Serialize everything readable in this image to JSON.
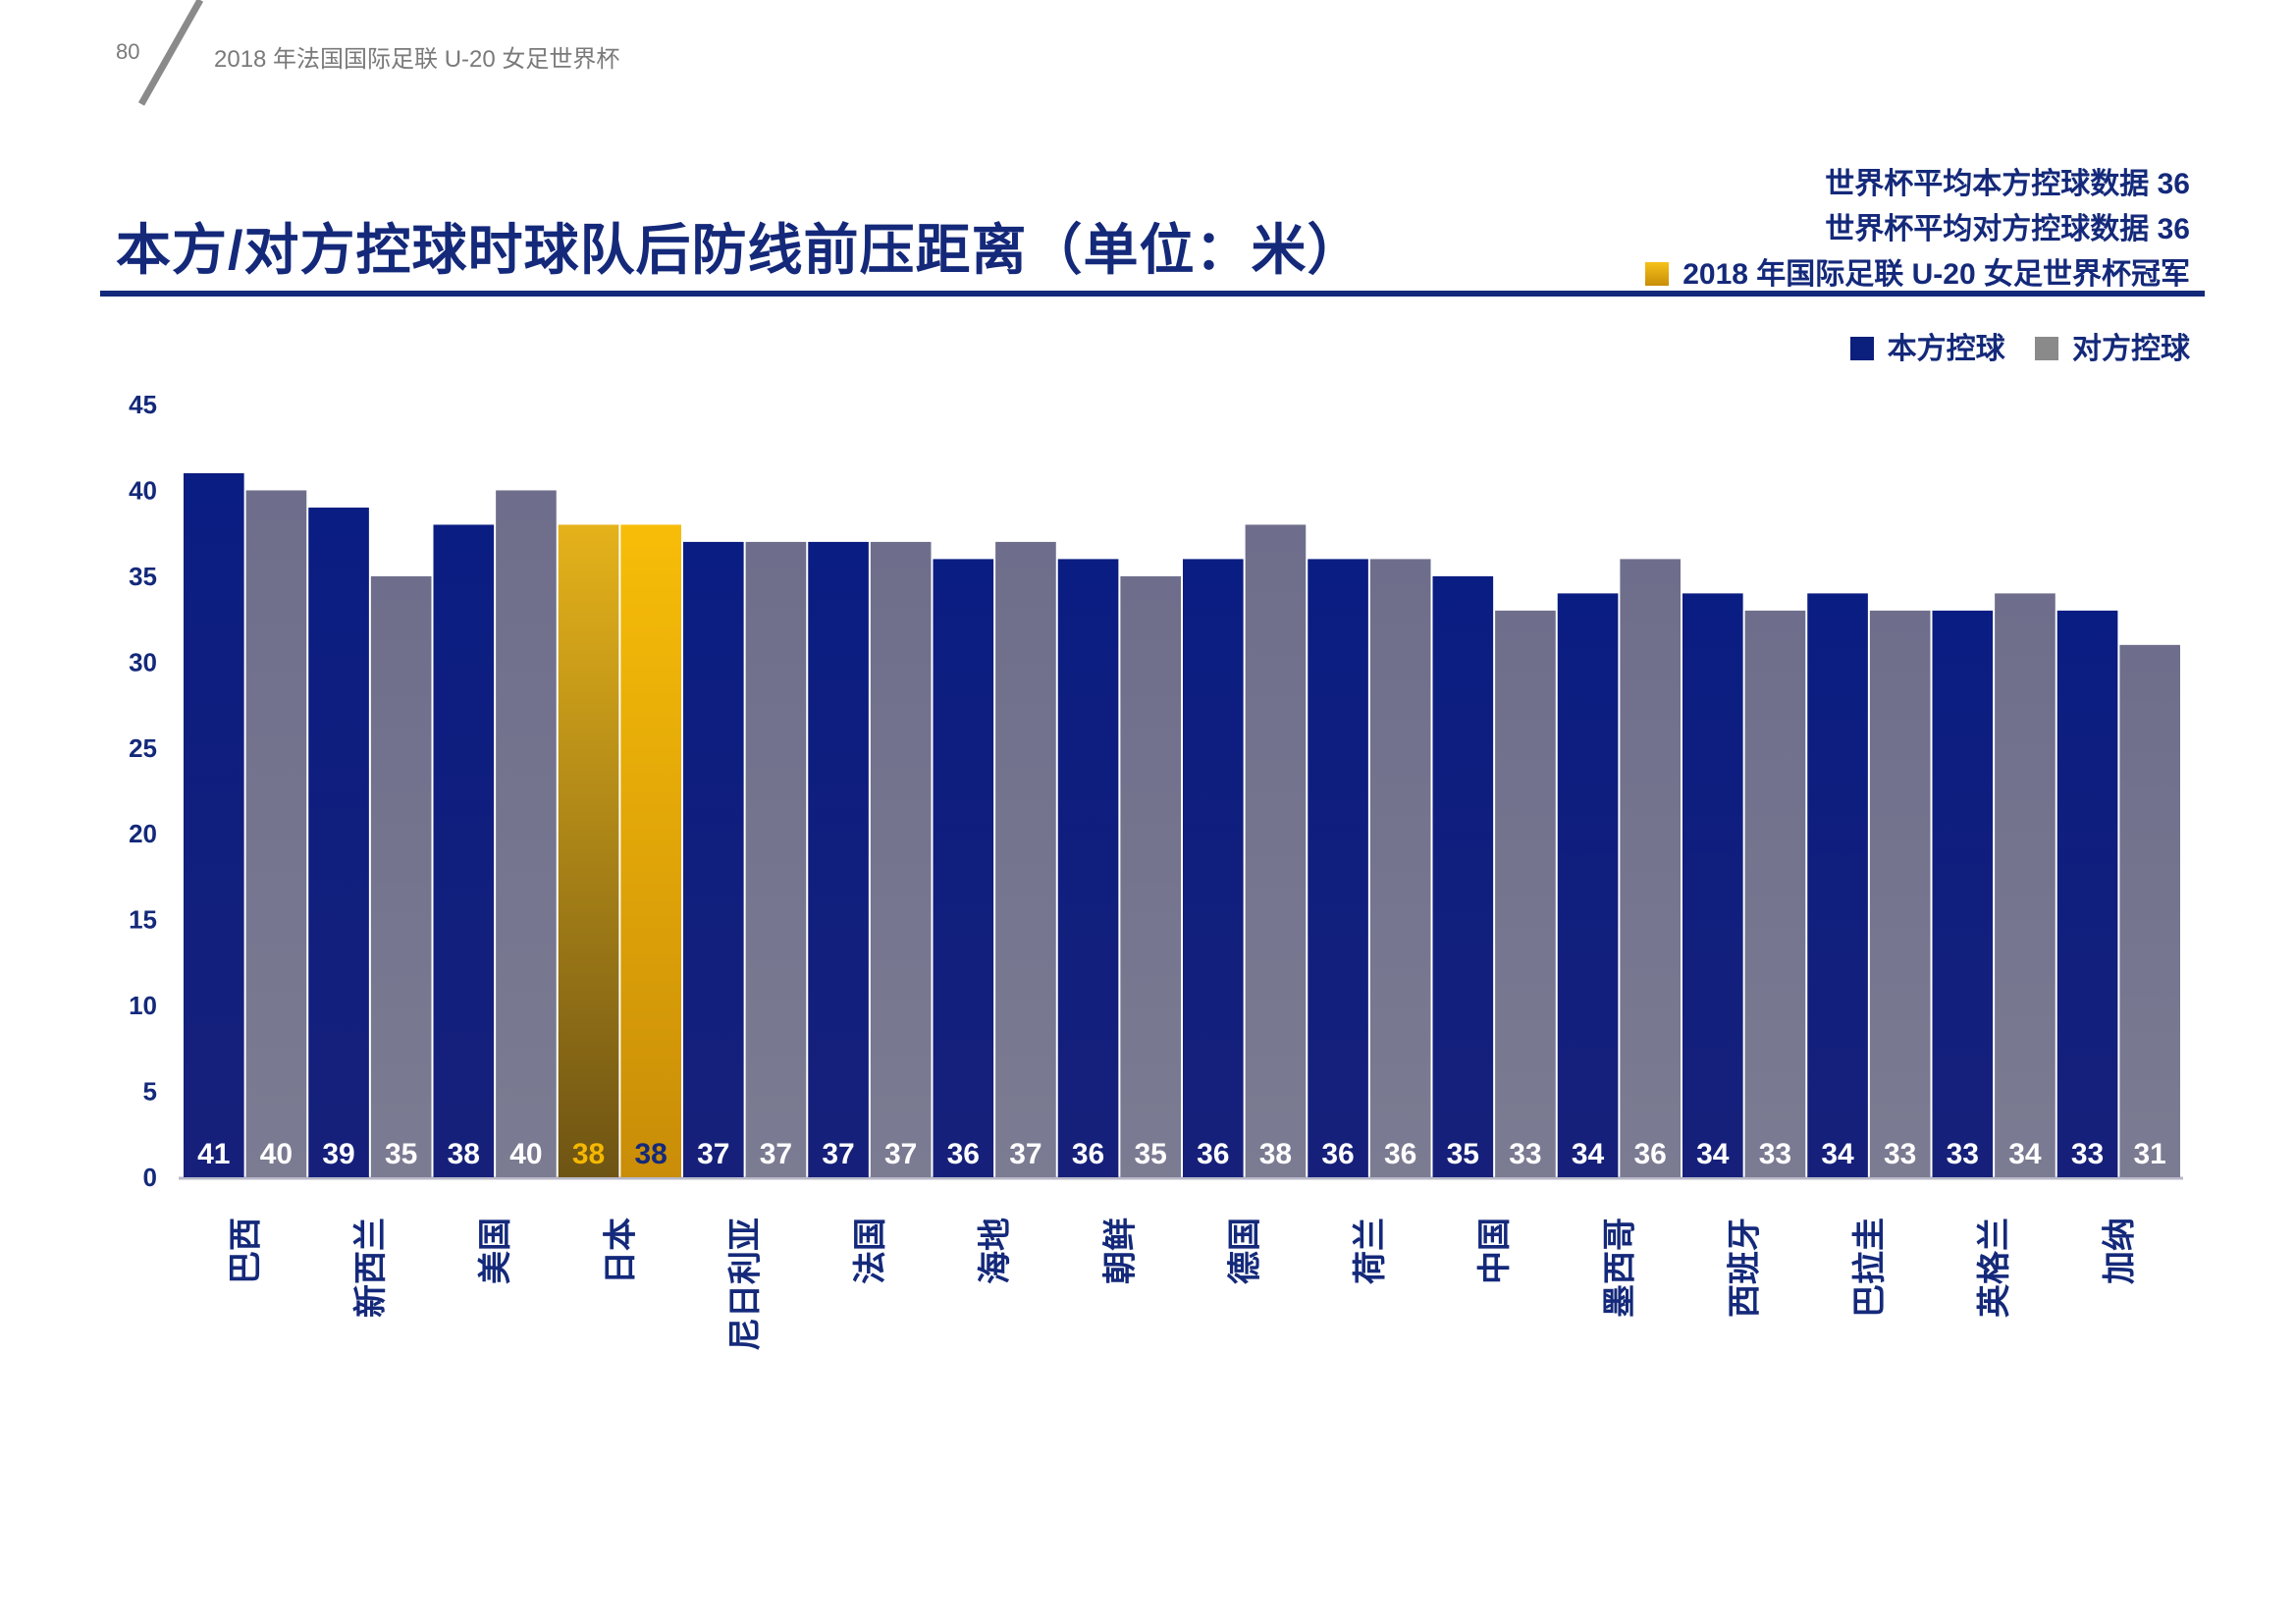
{
  "header": {
    "page_number": "80",
    "report_title": "2018 年法国国际足联 U-20 女足世界杯"
  },
  "title": "本方/对方控球时球队后防线前压距离（单位：米）",
  "stats": {
    "home_avg": "世界杯平均本方控球数据  36",
    "away_avg": "世界杯平均对方控球数据  36",
    "champion": "2018 年国际足联 U-20 女足世界杯冠军"
  },
  "legend": {
    "home": "本方控球",
    "away": "对方控球"
  },
  "colors": {
    "home": "#0b1f7d",
    "away": "#74748e",
    "champion": "#f5b800",
    "title": "#14297a"
  },
  "chart_data": {
    "type": "bar",
    "categories": [
      "巴西",
      "新西兰",
      "美国",
      "日本",
      "尼日利亚",
      "法国",
      "海地",
      "朝鲜",
      "德国",
      "荷兰",
      "中国",
      "墨西哥",
      "西班牙",
      "巴拉圭",
      "英格兰",
      "加纳"
    ],
    "series": [
      {
        "name": "本方控球",
        "values": [
          41,
          39,
          38,
          38,
          37,
          37,
          36,
          36,
          36,
          36,
          35,
          34,
          34,
          34,
          33,
          33
        ],
        "labels": [
          "41",
          "39",
          "38",
          "38",
          "37",
          "37",
          "36",
          "36",
          "36",
          "36",
          "35",
          "34",
          "34",
          "34",
          "33",
          "33"
        ]
      },
      {
        "name": "对方控球",
        "values": [
          40,
          35,
          40,
          38,
          37,
          37,
          37,
          35,
          38,
          36,
          33,
          36,
          33,
          33,
          34,
          31
        ],
        "labels": [
          "40",
          "35",
          "40",
          "38",
          "37",
          "37",
          "37",
          "35",
          "38",
          "36",
          "33",
          "36",
          "33",
          "33",
          "34",
          "31"
        ]
      }
    ],
    "highlight_category": "日本",
    "ylim": [
      0,
      45
    ],
    "yticks": [
      "0",
      "5",
      "10",
      "15",
      "20",
      "25",
      "30",
      "35",
      "40",
      "45"
    ],
    "xlabel": "",
    "ylabel": ""
  }
}
